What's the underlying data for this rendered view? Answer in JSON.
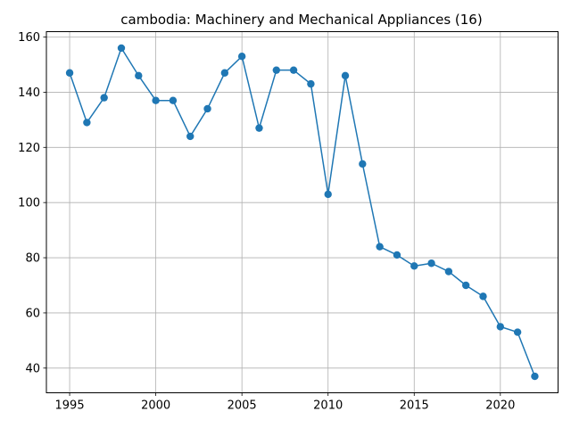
{
  "chart_data": {
    "type": "line",
    "title": "cambodia: Machinery and Mechanical Appliances (16)",
    "xlabel": "",
    "ylabel": "",
    "grid": true,
    "x_ticks": [
      1995,
      2000,
      2005,
      2010,
      2015,
      2020
    ],
    "y_ticks": [
      40,
      60,
      80,
      100,
      120,
      140,
      160
    ],
    "xlim": [
      1993.65,
      2023.35
    ],
    "ylim": [
      31.05,
      161.95
    ],
    "series": [
      {
        "color": "#1f77b4",
        "marker": "circle",
        "x": [
          1995,
          1996,
          1997,
          1998,
          1999,
          2000,
          2001,
          2002,
          2003,
          2004,
          2005,
          2006,
          2007,
          2008,
          2009,
          2010,
          2011,
          2012,
          2013,
          2014,
          2015,
          2016,
          2017,
          2018,
          2019,
          2020,
          2021,
          2022
        ],
        "y": [
          147,
          129,
          138,
          156,
          146,
          137,
          137,
          124,
          134,
          147,
          153,
          127,
          148,
          148,
          143,
          103,
          146,
          114,
          84,
          81,
          77,
          78,
          75,
          70,
          66,
          55,
          53,
          37
        ]
      }
    ]
  }
}
